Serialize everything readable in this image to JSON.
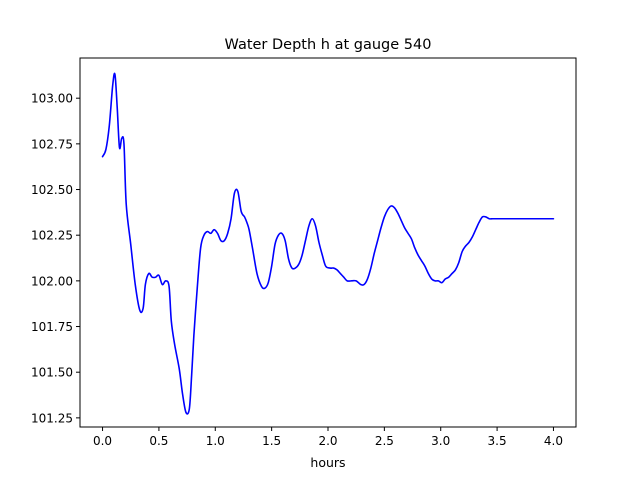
{
  "chart_data": {
    "type": "line",
    "title": "Water Depth h at gauge 540",
    "xlabel": "hours",
    "ylabel": "",
    "xlim": [
      -0.2,
      4.2
    ],
    "ylim": [
      101.2,
      103.22
    ],
    "x_ticks": [
      0.0,
      0.5,
      1.0,
      1.5,
      2.0,
      2.5,
      3.0,
      3.5,
      4.0
    ],
    "x_tick_labels": [
      "0.0",
      "0.5",
      "1.0",
      "1.5",
      "2.0",
      "2.5",
      "3.0",
      "3.5",
      "4.0"
    ],
    "y_ticks": [
      101.25,
      101.5,
      101.75,
      102.0,
      102.25,
      102.5,
      102.75,
      103.0
    ],
    "y_tick_labels": [
      "101.25",
      "101.50",
      "101.75",
      "102.00",
      "102.25",
      "102.50",
      "102.75",
      "103.00"
    ],
    "grid": false,
    "series": [
      {
        "color": "#0000ff",
        "x": [
          0.0,
          0.03,
          0.06,
          0.09,
          0.11,
          0.13,
          0.15,
          0.17,
          0.19,
          0.21,
          0.25,
          0.29,
          0.33,
          0.36,
          0.38,
          0.41,
          0.44,
          0.47,
          0.5,
          0.53,
          0.56,
          0.59,
          0.61,
          0.64,
          0.68,
          0.71,
          0.74,
          0.77,
          0.79,
          0.81,
          0.84,
          0.87,
          0.9,
          0.93,
          0.96,
          0.99,
          1.02,
          1.05,
          1.08,
          1.11,
          1.14,
          1.17,
          1.2,
          1.23,
          1.26,
          1.28,
          1.3,
          1.33,
          1.37,
          1.41,
          1.44,
          1.47,
          1.5,
          1.53,
          1.56,
          1.59,
          1.62,
          1.65,
          1.68,
          1.71,
          1.74,
          1.77,
          1.8,
          1.83,
          1.86,
          1.89,
          1.92,
          1.95,
          1.98,
          2.02,
          2.05,
          2.08,
          2.11,
          2.14,
          2.17,
          2.21,
          2.25,
          2.29,
          2.32,
          2.35,
          2.38,
          2.41,
          2.44,
          2.47,
          2.5,
          2.53,
          2.56,
          2.59,
          2.62,
          2.65,
          2.68,
          2.71,
          2.74,
          2.77,
          2.8,
          2.83,
          2.86,
          2.89,
          2.92,
          2.95,
          2.98,
          3.01,
          3.04,
          3.07,
          3.1,
          3.13,
          3.16,
          3.19,
          3.22,
          3.25,
          3.28,
          3.31,
          3.34,
          3.37,
          3.4,
          3.43,
          3.46,
          3.49,
          3.52,
          3.55,
          3.58,
          3.61,
          3.64,
          3.67,
          3.7,
          3.73,
          3.76,
          3.79,
          3.82,
          3.85,
          3.88,
          3.91,
          3.94,
          3.97,
          4.0
        ],
        "y": [
          102.68,
          102.72,
          102.85,
          103.07,
          103.13,
          102.95,
          102.73,
          102.78,
          102.75,
          102.42,
          102.2,
          101.98,
          101.84,
          101.85,
          101.98,
          102.04,
          102.02,
          102.02,
          102.03,
          101.98,
          102.0,
          101.97,
          101.78,
          101.65,
          101.52,
          101.38,
          101.28,
          101.3,
          101.48,
          101.7,
          101.96,
          102.18,
          102.25,
          102.27,
          102.26,
          102.28,
          102.26,
          102.22,
          102.22,
          102.26,
          102.34,
          102.48,
          102.49,
          102.38,
          102.35,
          102.32,
          102.28,
          102.18,
          102.04,
          101.97,
          101.96,
          101.99,
          102.08,
          102.2,
          102.25,
          102.26,
          102.22,
          102.12,
          102.07,
          102.07,
          102.09,
          102.14,
          102.22,
          102.3,
          102.34,
          102.3,
          102.21,
          102.14,
          102.08,
          102.07,
          102.07,
          102.06,
          102.04,
          102.02,
          102.0,
          102.0,
          102.0,
          101.98,
          101.98,
          102.01,
          102.07,
          102.15,
          102.22,
          102.29,
          102.35,
          102.39,
          102.41,
          102.4,
          102.37,
          102.33,
          102.29,
          102.26,
          102.23,
          102.18,
          102.14,
          102.11,
          102.08,
          102.04,
          102.01,
          102.0,
          102.0,
          101.99,
          102.01,
          102.02,
          102.04,
          102.06,
          102.1,
          102.16,
          102.19,
          102.21,
          102.24,
          102.28,
          102.32,
          102.35,
          102.35,
          102.34,
          102.34,
          102.34,
          102.34,
          102.34,
          102.34,
          102.34,
          102.34,
          102.34,
          102.34,
          102.34,
          102.34,
          102.34,
          102.34,
          102.34,
          102.34,
          102.34,
          102.34,
          102.34,
          102.34
        ]
      }
    ]
  }
}
